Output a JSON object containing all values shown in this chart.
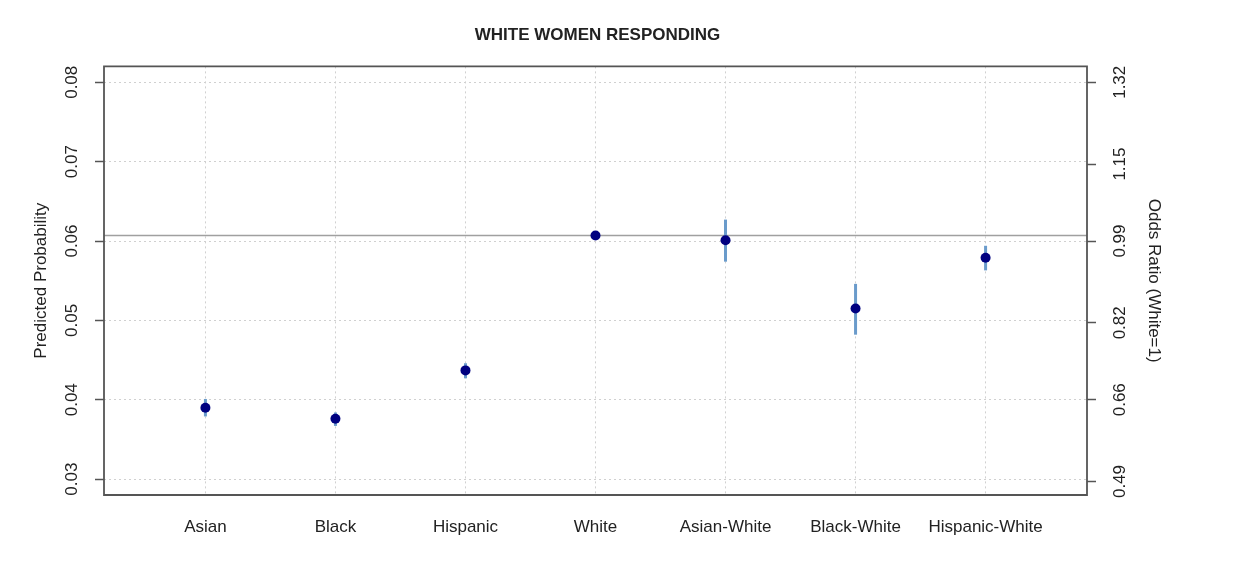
{
  "chart_data": {
    "type": "scatter",
    "title": "WHITE WOMEN RESPONDING",
    "ylabel": "Predicted Probability",
    "y2label": "Odds Ratio (White=1)",
    "categories": [
      "Asian",
      "Black",
      "Hispanic",
      "White",
      "Asian-White",
      "Black-White",
      "Hispanic-White"
    ],
    "series": [
      {
        "color": "#000080",
        "values": [
          0.039,
          0.0376,
          0.0437,
          0.0607,
          0.0601,
          0.0515,
          0.0579
        ],
        "errors": [
          [
            0.0379,
            0.0401
          ],
          [
            0.0367,
            0.0384
          ],
          [
            0.0427,
            0.0446
          ],
          null,
          [
            0.0574,
            0.0627
          ],
          [
            0.0482,
            0.0546
          ],
          [
            0.0563,
            0.0594
          ]
        ]
      }
    ],
    "ylim": [
      0.028,
      0.082
    ],
    "yticks": [
      0.03,
      0.04,
      0.05,
      0.06,
      0.07,
      0.08
    ],
    "y2lim": [
      0.462,
      1.353
    ],
    "y2ticks": [
      0.49,
      0.66,
      0.82,
      0.99,
      1.15,
      1.32
    ],
    "ref_lines": [
      {
        "axis": "y",
        "value": 0.0607,
        "color": "#a0a0a0"
      }
    ],
    "grid": true,
    "marker": "circle"
  }
}
